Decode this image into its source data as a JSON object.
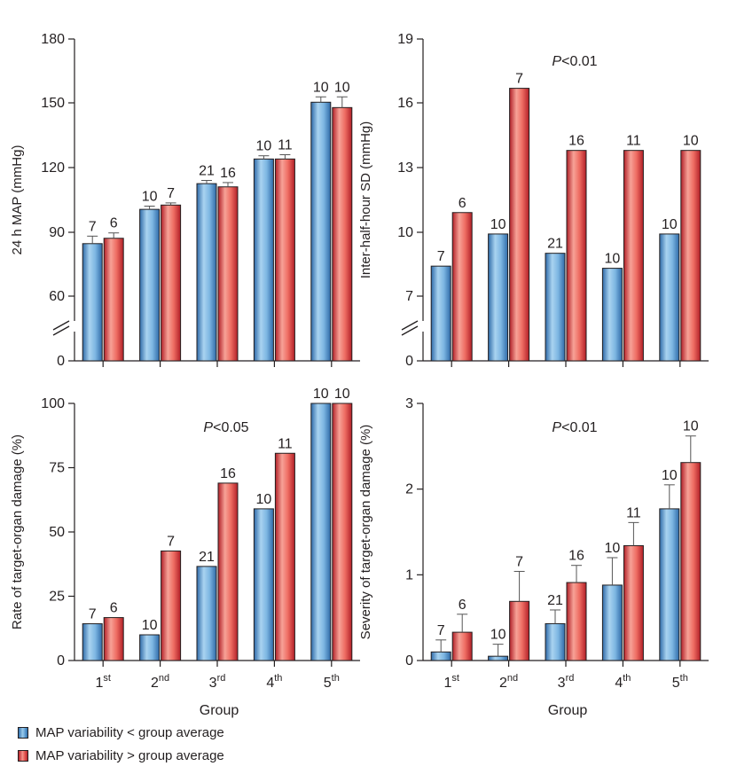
{
  "colors": {
    "blue": "#5b9bd5",
    "red": "#e2423f",
    "axis": "#231f20"
  },
  "legend": {
    "below": "MAP variability < group average",
    "above": "MAP variability > group average"
  },
  "chart_data": [
    {
      "type": "bar",
      "ylabel": "24 h MAP (mmHg)",
      "xlabel": "",
      "ylim": [
        0,
        180
      ],
      "yticks": [
        "0",
        "60",
        "90",
        "120",
        "150",
        "180"
      ],
      "axis_break": true,
      "annotation": "",
      "categories": [
        "1st",
        "2nd",
        "3rd",
        "4th",
        "5th"
      ],
      "series": [
        {
          "name": "MAP variability < group average",
          "values": [
            84.5,
            100.5,
            112.5,
            124,
            150.5
          ],
          "errors": [
            3.5,
            1.5,
            1.5,
            1.5,
            2.5
          ],
          "labels": [
            "7",
            "10",
            "21",
            "10",
            "10"
          ]
        },
        {
          "name": "MAP variability > group average",
          "values": [
            87,
            102.5,
            111,
            124,
            148
          ],
          "errors": [
            2.5,
            1,
            2,
            2,
            5
          ],
          "labels": [
            "6",
            "7",
            "16",
            "11",
            "10"
          ]
        }
      ]
    },
    {
      "type": "bar",
      "ylabel": "Inter-half-hour SD (mmHg)",
      "xlabel": "",
      "ylim": [
        0,
        19
      ],
      "yticks": [
        "0",
        "7",
        "10",
        "13",
        "16",
        "19"
      ],
      "axis_break": true,
      "annotation": "P<0.01",
      "categories": [
        "1st",
        "2nd",
        "3rd",
        "4th",
        "5th"
      ],
      "series": [
        {
          "name": "MAP variability < group average",
          "values": [
            8.4,
            9.9,
            9.0,
            8.3,
            9.9
          ],
          "errors": [
            0,
            0,
            0,
            0,
            0
          ],
          "labels": [
            "7",
            "10",
            "21",
            "10",
            "10"
          ]
        },
        {
          "name": "MAP variability > group average",
          "values": [
            10.9,
            16.7,
            13.8,
            13.8,
            13.8
          ],
          "errors": [
            0,
            0,
            0,
            0,
            0
          ],
          "labels": [
            "6",
            "7",
            "16",
            "11",
            "10"
          ]
        }
      ]
    },
    {
      "type": "bar",
      "ylabel": "Rate of target-organ damage (%)",
      "xlabel": "Group",
      "ylim": [
        0,
        100
      ],
      "yticks": [
        "0",
        "25",
        "50",
        "75",
        "100"
      ],
      "axis_break": false,
      "annotation": "P<0.05",
      "categories": [
        "1st",
        "2nd",
        "3rd",
        "4th",
        "5th"
      ],
      "series": [
        {
          "name": "MAP variability < group average",
          "values": [
            14.3,
            10,
            36.6,
            59,
            100
          ],
          "errors": [
            0,
            0,
            0,
            0,
            0
          ],
          "labels": [
            "7",
            "10",
            "21",
            "10",
            "10"
          ]
        },
        {
          "name": "MAP variability > group average",
          "values": [
            16.7,
            42.6,
            69,
            80.6,
            100
          ],
          "errors": [
            0,
            0,
            0,
            0,
            0
          ],
          "labels": [
            "6",
            "7",
            "16",
            "11",
            "10"
          ]
        }
      ]
    },
    {
      "type": "bar",
      "ylabel": "Severity of target-organ damage (%)",
      "xlabel": "Group",
      "ylim": [
        0,
        3
      ],
      "yticks": [
        "0",
        "1",
        "2",
        "3"
      ],
      "axis_break": false,
      "annotation": "P<0.01",
      "categories": [
        "1st",
        "2nd",
        "3rd",
        "4th",
        "5th"
      ],
      "series": [
        {
          "name": "MAP variability < group average",
          "values": [
            0.1,
            0.05,
            0.43,
            0.88,
            1.77
          ],
          "errors": [
            0.14,
            0.14,
            0.16,
            0.32,
            0.28
          ],
          "labels": [
            "7",
            "10",
            "21",
            "10",
            "10"
          ]
        },
        {
          "name": "MAP variability > group average",
          "values": [
            0.33,
            0.69,
            0.91,
            1.34,
            2.31
          ],
          "errors": [
            0.21,
            0.35,
            0.2,
            0.27,
            0.31
          ],
          "labels": [
            "6",
            "7",
            "16",
            "11",
            "10"
          ]
        }
      ]
    }
  ]
}
